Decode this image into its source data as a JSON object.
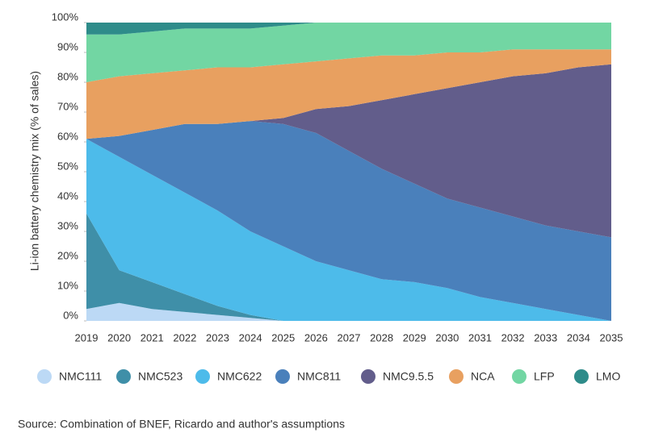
{
  "chart_data": {
    "type": "stacked-area",
    "y_label": "Li-ion battery chemistry mix (% of sales)",
    "x": [
      2019,
      2020,
      2021,
      2022,
      2023,
      2024,
      2025,
      2026,
      2027,
      2028,
      2029,
      2030,
      2031,
      2032,
      2033,
      2034,
      2035
    ],
    "xlim": [
      2019,
      2035
    ],
    "ylim": [
      0,
      100
    ],
    "yticks": [
      {
        "value": 0,
        "label": "0%"
      },
      {
        "value": 10,
        "label": "10%"
      },
      {
        "value": 20,
        "label": "20%"
      },
      {
        "value": 30,
        "label": "30%"
      },
      {
        "value": 40,
        "label": "40%"
      },
      {
        "value": 50,
        "label": "50%"
      },
      {
        "value": 60,
        "label": "60%"
      },
      {
        "value": 70,
        "label": "70%"
      },
      {
        "value": 80,
        "label": "80%"
      },
      {
        "value": 90,
        "label": "90%"
      },
      {
        "value": 100,
        "label": "100%"
      }
    ],
    "series": [
      {
        "name": "NMC111",
        "color": "#bcd9f5",
        "values": [
          4,
          6,
          4,
          3,
          2,
          1,
          0,
          0,
          0,
          0,
          0,
          0,
          0,
          0,
          0,
          0,
          0
        ]
      },
      {
        "name": "NMC523",
        "color": "#3f8fa8",
        "values": [
          32,
          11,
          9,
          6,
          3,
          1,
          0,
          0,
          0,
          0,
          0,
          0,
          0,
          0,
          0,
          0,
          0
        ]
      },
      {
        "name": "NMC622",
        "color": "#4dbbea",
        "values": [
          25,
          38,
          36,
          34,
          32,
          28,
          25,
          20,
          17,
          14,
          13,
          11,
          8,
          6,
          4,
          2,
          0
        ]
      },
      {
        "name": "NMC811",
        "color": "#4a80bb",
        "values": [
          0,
          7,
          15,
          23,
          29,
          37,
          41,
          43,
          40,
          37,
          33,
          30,
          30,
          29,
          28,
          28,
          28
        ]
      },
      {
        "name": "NMC9.5.5",
        "color": "#625d8b",
        "values": [
          0,
          0,
          0,
          0,
          0,
          0,
          2,
          8,
          15,
          23,
          30,
          37,
          42,
          47,
          51,
          55,
          58
        ]
      },
      {
        "name": "NCA",
        "color": "#e8a060",
        "values": [
          19,
          20,
          19,
          18,
          19,
          18,
          18,
          16,
          16,
          15,
          13,
          12,
          10,
          9,
          8,
          6,
          5
        ]
      },
      {
        "name": "LFP",
        "color": "#72d6a3",
        "values": [
          16,
          14,
          14,
          14,
          13,
          13,
          13,
          13,
          12,
          11,
          11,
          10,
          10,
          9,
          9,
          9,
          9
        ]
      },
      {
        "name": "LMO",
        "color": "#2e8c8a",
        "values": [
          4,
          4,
          3,
          2,
          2,
          2,
          1,
          0,
          0,
          0,
          0,
          0,
          0,
          0,
          0,
          0,
          0
        ]
      }
    ],
    "source": "Source: Combination of BNEF, Ricardo and author's assumptions"
  }
}
